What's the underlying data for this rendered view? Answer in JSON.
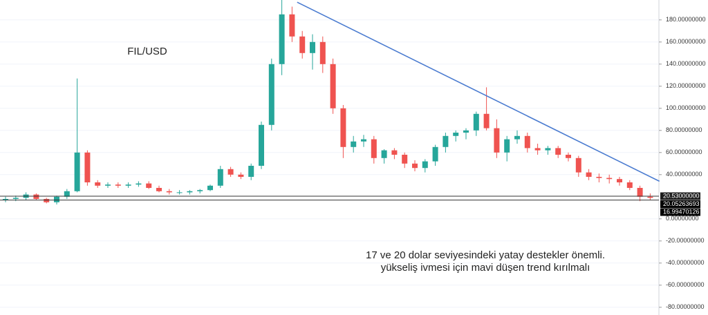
{
  "chart_data": {
    "type": "candlestick",
    "title": "FIL/USD",
    "annotation": [
      "17 ve 20 dolar seviyesindeki yatay destekler önemli.",
      "yükseliş ivmesi için mavi düşen trend kırılmalı"
    ],
    "open": [
      17,
      18,
      19,
      22,
      18,
      15,
      20,
      25,
      60,
      33,
      30,
      31,
      30,
      31,
      32,
      28,
      25,
      24,
      24,
      25,
      26,
      30,
      45,
      40,
      38,
      48,
      85,
      140,
      185,
      165,
      150,
      160,
      140,
      100,
      65,
      70,
      72,
      55,
      62,
      58,
      50,
      46,
      52,
      65,
      75,
      78,
      80,
      95,
      82,
      60,
      72,
      75,
      64,
      62,
      64,
      58,
      55,
      42,
      38,
      37,
      36,
      33,
      28,
      20
    ],
    "high": [
      20,
      21,
      24,
      23,
      19,
      21,
      27,
      127,
      62,
      35,
      33,
      33,
      33,
      34,
      34,
      30,
      27,
      26,
      26,
      27,
      31,
      48,
      47,
      42,
      50,
      88,
      145,
      198,
      192,
      170,
      167,
      165,
      145,
      103,
      75,
      76,
      75,
      63,
      64,
      60,
      53,
      54,
      67,
      78,
      80,
      82,
      97,
      119,
      90,
      75,
      80,
      78,
      68,
      66,
      66,
      60,
      57,
      45,
      41,
      40,
      38,
      35,
      30,
      23
    ],
    "low": [
      15,
      16,
      17,
      17,
      14,
      13,
      18,
      24,
      30,
      28,
      28,
      28,
      28,
      29,
      27,
      24,
      22,
      22,
      22,
      23,
      25,
      28,
      38,
      36,
      35,
      45,
      80,
      130,
      160,
      145,
      135,
      132,
      95,
      55,
      60,
      65,
      50,
      50,
      54,
      46,
      43,
      42,
      48,
      60,
      70,
      72,
      75,
      80,
      55,
      52,
      68,
      60,
      58,
      58,
      55,
      52,
      38,
      35,
      33,
      32,
      30,
      26,
      16,
      17
    ],
    "close": [
      18,
      19,
      22,
      18,
      15,
      20,
      25,
      60,
      33,
      30,
      31,
      30,
      31,
      32,
      28,
      25,
      24,
      24,
      25,
      26,
      30,
      45,
      40,
      38,
      48,
      85,
      140,
      185,
      165,
      150,
      160,
      140,
      100,
      65,
      70,
      72,
      55,
      62,
      58,
      50,
      46,
      52,
      65,
      75,
      78,
      80,
      95,
      82,
      60,
      72,
      75,
      64,
      62,
      64,
      58,
      55,
      42,
      38,
      37,
      36,
      33,
      28,
      20,
      19
    ],
    "up_color": "#26a69a",
    "down_color": "#ef5350",
    "trendline": {
      "x": [
        28.5,
        63.9
      ],
      "y": [
        196,
        34
      ],
      "color": "#4a7bd0"
    },
    "hlines": [
      {
        "value": 20.53,
        "label": "20.53000000"
      },
      {
        "value": 20.05263693,
        "label": "20.05263693"
      },
      {
        "value": 16.99470126,
        "label": "16.99470126"
      }
    ],
    "ylim": [
      -87,
      198
    ],
    "yticks": [
      {
        "value": 180,
        "label": "180.00000000"
      },
      {
        "value": 160,
        "label": "160.00000000"
      },
      {
        "value": 140,
        "label": "140.00000000"
      },
      {
        "value": 120,
        "label": "120.00000000"
      },
      {
        "value": 100,
        "label": "100.00000000"
      },
      {
        "value": 80,
        "label": "80.00000000"
      },
      {
        "value": 60,
        "label": "60.00000000"
      },
      {
        "value": 40,
        "label": "40.00000000"
      },
      {
        "value": 0,
        "label": "0.00000000"
      },
      {
        "value": -20,
        "label": "-20.00000000"
      },
      {
        "value": -40,
        "label": "-40.00000000"
      },
      {
        "value": -60,
        "label": "-60.00000000"
      },
      {
        "value": -80,
        "label": "-80.00000000"
      }
    ],
    "grid": true
  }
}
